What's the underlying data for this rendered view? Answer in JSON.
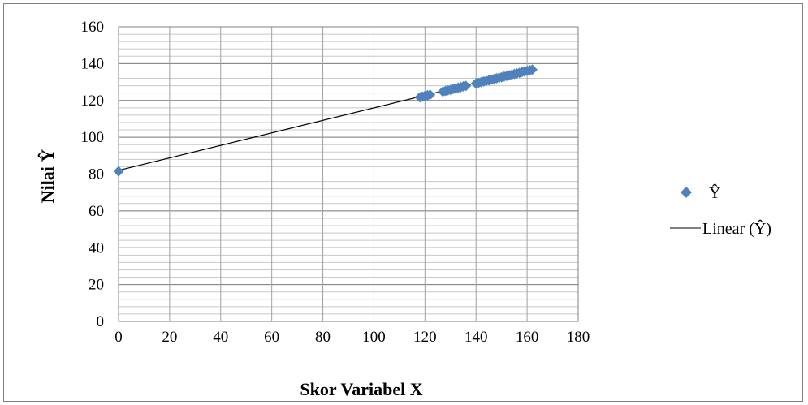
{
  "chart_data": {
    "type": "scatter",
    "title": "",
    "xlabel": "Skor Variabel X",
    "ylabel": "Nilai Ŷ",
    "xlim": [
      0,
      180
    ],
    "ylim": [
      0,
      160
    ],
    "x_ticks": [
      0,
      20,
      40,
      60,
      80,
      100,
      120,
      140,
      160,
      180
    ],
    "y_ticks": [
      0,
      20,
      40,
      60,
      80,
      100,
      120,
      140,
      160
    ],
    "grid": true,
    "legend_position": "right",
    "series": [
      {
        "name": "Ŷ",
        "marker": "diamond",
        "color": "#4f81bd",
        "x": [
          0,
          118,
          119,
          120,
          121,
          122,
          127,
          128,
          129,
          130,
          131,
          132,
          133,
          134,
          135,
          136,
          140,
          141,
          142,
          143,
          144,
          145,
          146,
          147,
          148,
          149,
          150,
          151,
          152,
          153,
          154,
          155,
          156,
          157,
          158,
          159,
          160,
          161,
          162
        ],
        "y": [
          81.5,
          121.7,
          122.1,
          122.4,
          122.8,
          123.1,
          124.8,
          125.2,
          125.5,
          125.8,
          126.2,
          126.5,
          126.9,
          127.2,
          127.6,
          127.9,
          129.2,
          129.6,
          129.9,
          130.3,
          130.6,
          130.9,
          131.3,
          131.6,
          132.0,
          132.3,
          132.6,
          133.0,
          133.3,
          133.7,
          134.0,
          134.4,
          134.7,
          135.0,
          135.4,
          135.7,
          136.1,
          136.4,
          136.7
        ]
      },
      {
        "name": "Linear (Ŷ)",
        "type": "line",
        "color": "#000000",
        "x": [
          0,
          162
        ],
        "y": [
          82,
          137
        ]
      }
    ]
  }
}
